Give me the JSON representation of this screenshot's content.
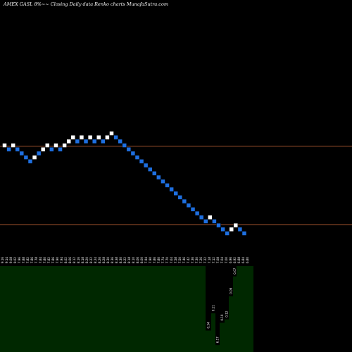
{
  "chart_data": {
    "type": "renko",
    "title": "AMEX  GASL  8%~~  Closing Daily data  Renko  charts MunafaSutra.com",
    "colors": {
      "background": "#000000",
      "up_brick": "#ffffff",
      "down_brick": "#1e6fe0",
      "brick_outline": "#000000",
      "reference_line": "#a0522d",
      "volume_bar": "#002800",
      "label_text": "#ffffff"
    },
    "bricks": [
      {
        "dir": "up",
        "level": 0
      },
      {
        "dir": "down",
        "level": 1
      },
      {
        "dir": "up",
        "level": 0
      },
      {
        "dir": "down",
        "level": 1
      },
      {
        "dir": "down",
        "level": 2
      },
      {
        "dir": "down",
        "level": 3
      },
      {
        "dir": "down",
        "level": 4
      },
      {
        "dir": "up",
        "level": 3
      },
      {
        "dir": "down",
        "level": 2
      },
      {
        "dir": "up",
        "level": 1
      },
      {
        "dir": "up",
        "level": 0
      },
      {
        "dir": "down",
        "level": 1
      },
      {
        "dir": "up",
        "level": 0
      },
      {
        "dir": "down",
        "level": 1
      },
      {
        "dir": "up",
        "level": 0
      },
      {
        "dir": "up",
        "level": -1
      },
      {
        "dir": "up",
        "level": -2
      },
      {
        "dir": "down",
        "level": -1
      },
      {
        "dir": "up",
        "level": -2
      },
      {
        "dir": "down",
        "level": -1
      },
      {
        "dir": "up",
        "level": -2
      },
      {
        "dir": "down",
        "level": -1
      },
      {
        "dir": "up",
        "level": -2
      },
      {
        "dir": "down",
        "level": -1
      },
      {
        "dir": "up",
        "level": -2
      },
      {
        "dir": "up",
        "level": -3
      },
      {
        "dir": "down",
        "level": -2
      },
      {
        "dir": "down",
        "level": -1
      },
      {
        "dir": "down",
        "level": 0
      },
      {
        "dir": "down",
        "level": 1
      },
      {
        "dir": "down",
        "level": 2
      },
      {
        "dir": "down",
        "level": 3
      },
      {
        "dir": "down",
        "level": 4
      },
      {
        "dir": "down",
        "level": 5
      },
      {
        "dir": "down",
        "level": 6
      },
      {
        "dir": "down",
        "level": 7
      },
      {
        "dir": "down",
        "level": 8
      },
      {
        "dir": "down",
        "level": 9
      },
      {
        "dir": "down",
        "level": 10
      },
      {
        "dir": "down",
        "level": 11
      },
      {
        "dir": "down",
        "level": 12
      },
      {
        "dir": "down",
        "level": 13
      },
      {
        "dir": "down",
        "level": 14
      },
      {
        "dir": "down",
        "level": 15
      },
      {
        "dir": "down",
        "level": 16
      },
      {
        "dir": "down",
        "level": 17
      },
      {
        "dir": "down",
        "level": 18
      },
      {
        "dir": "down",
        "level": 19
      },
      {
        "dir": "up",
        "level": 18
      },
      {
        "dir": "down",
        "level": 19
      },
      {
        "dir": "down",
        "level": 20
      },
      {
        "dir": "down",
        "level": 21
      },
      {
        "dir": "down",
        "level": 22
      },
      {
        "dir": "up",
        "level": 21
      },
      {
        "dir": "up",
        "level": 20
      },
      {
        "dir": "down",
        "level": 21
      },
      {
        "dir": "down",
        "level": 22
      }
    ],
    "reference_lines": [
      {
        "level": 0.2
      },
      {
        "level": 19.8
      }
    ],
    "price_labels": [
      "9.16",
      "9.14",
      "9.08",
      "9.02",
      "7.96",
      "7.88",
      "7.82",
      "7.86",
      "7.78",
      "7.84",
      "7.80",
      "7.82",
      "7.86",
      "7.90",
      "7.94",
      "8.02",
      "8.06",
      "8.12",
      "8.16",
      "8.18",
      "8.20",
      "8.22",
      "8.24",
      "8.26",
      "8.28",
      "8.30",
      "8.36",
      "8.38",
      "8.30",
      "8.22",
      "8.18",
      "8.10",
      "8.06",
      "8.00",
      "7.94",
      "7.90",
      "7.86",
      "7.80",
      "7.74",
      "7.70",
      "7.64",
      "7.58",
      "7.50",
      "7.46",
      "7.42",
      "7.36",
      "7.30",
      "7.26",
      "7.22",
      "7.18",
      "7.12",
      "7.08",
      "7.04",
      "7.00",
      "6.96",
      "6.92",
      "6.88",
      "6.84",
      "6.80"
    ],
    "volume": [
      {
        "label": "",
        "value": 1.0
      },
      {
        "label": "0.34",
        "value": 0.25
      },
      {
        "label": "0.11",
        "value": 0.45
      },
      {
        "label": "6.17",
        "value": 0.08
      },
      {
        "label": "0.19",
        "value": 0.34
      },
      {
        "label": "0.12",
        "value": 0.38
      },
      {
        "label": "0.09",
        "value": 0.65
      },
      {
        "label": "0.07",
        "value": 0.88
      },
      {
        "label": "",
        "value": 1.0
      }
    ]
  }
}
